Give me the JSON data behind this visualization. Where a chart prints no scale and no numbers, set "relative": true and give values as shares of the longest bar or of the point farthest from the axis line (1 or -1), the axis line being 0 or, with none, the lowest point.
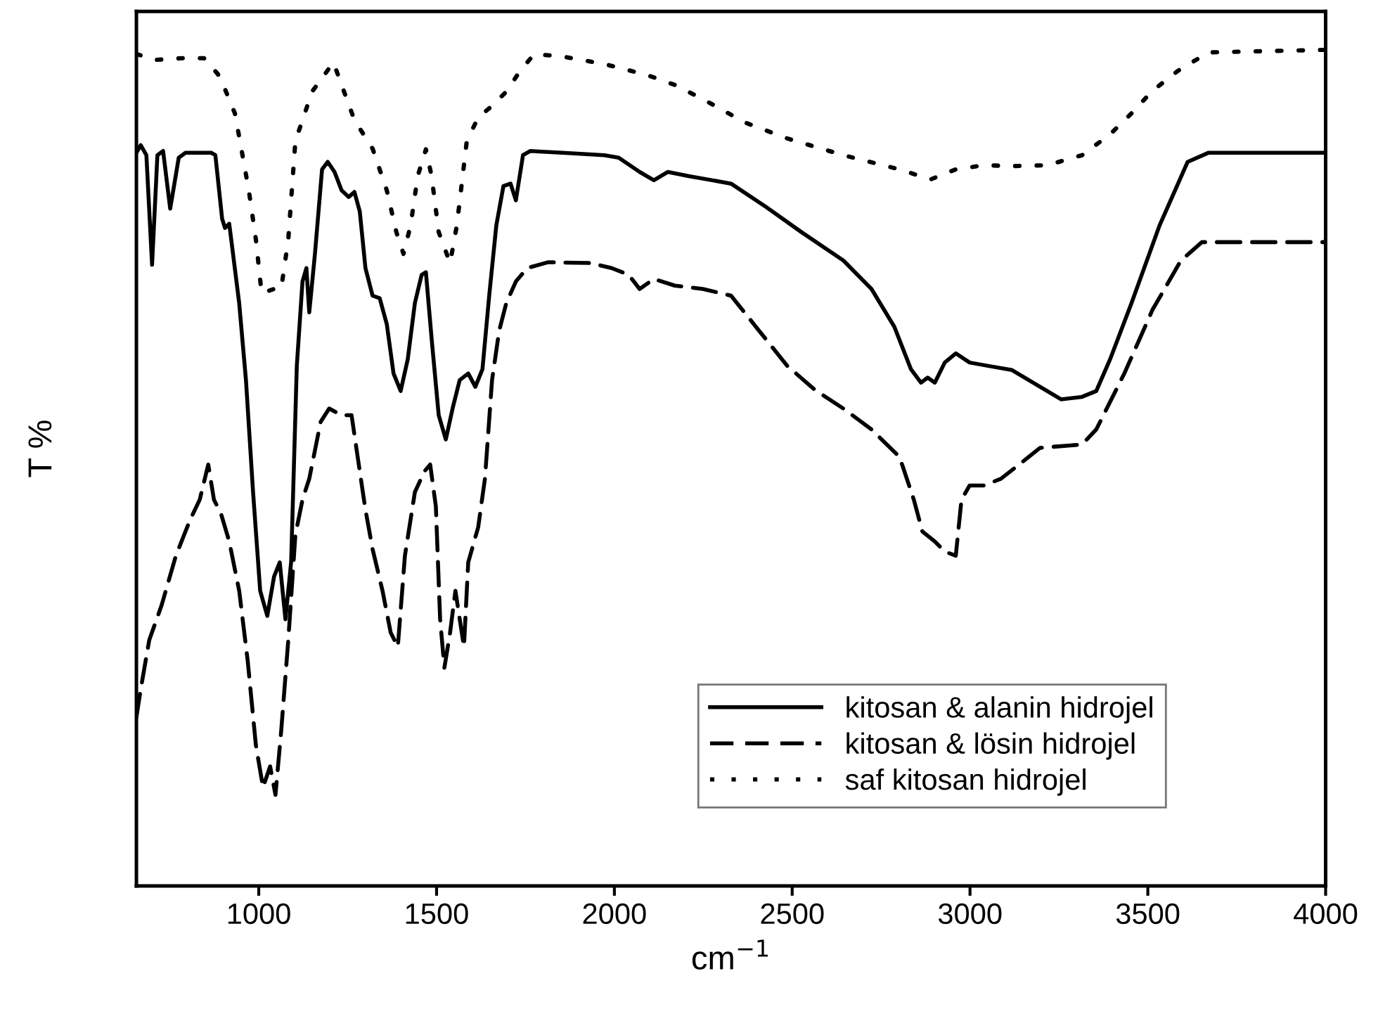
{
  "chart_data": {
    "type": "line",
    "relative": true,
    "xlabel": "cm$^{−1}$",
    "ylabel": "T %",
    "xlim": [
      656,
      4000
    ],
    "xticks": [
      1000,
      1500,
      2000,
      2500,
      3000,
      3500,
      4000
    ],
    "legend": "bottom right",
    "grid": false,
    "tick_labels": "x",
    "series": [
      {
        "name": "kitosan & alanin hidrojel",
        "color": "#000000",
        "line_style": "solid",
        "x": [
          656,
          668,
          684,
          700,
          715,
          731,
          751,
          775,
          794,
          826,
          866,
          878,
          897,
          905,
          917,
          925,
          945,
          964,
          984,
          1004,
          1024,
          1043,
          1059,
          1075,
          1091,
          1107,
          1123,
          1134,
          1142,
          1158,
          1178,
          1194,
          1213,
          1233,
          1253,
          1269,
          1284,
          1300,
          1320,
          1340,
          1360,
          1379,
          1399,
          1419,
          1439,
          1458,
          1470,
          1486,
          1506,
          1526,
          1545,
          1565,
          1589,
          1609,
          1629,
          1648,
          1668,
          1688,
          1708,
          1723,
          1743,
          1763,
          1854,
          1972,
          2012,
          2071,
          2111,
          2150,
          2209,
          2328,
          2427,
          2526,
          2644,
          2723,
          2787,
          2834,
          2862,
          2881,
          2901,
          2929,
          2960,
          2999,
          3051,
          3118,
          3197,
          3256,
          3315,
          3355,
          3394,
          3454,
          3533,
          3612,
          3671,
          3829,
          4000
        ],
        "values": [
          0.877,
          0.886,
          0.874,
          0.743,
          0.874,
          0.879,
          0.81,
          0.871,
          0.877,
          0.877,
          0.877,
          0.874,
          0.798,
          0.787,
          0.792,
          0.765,
          0.697,
          0.605,
          0.471,
          0.353,
          0.323,
          0.37,
          0.387,
          0.319,
          0.387,
          0.622,
          0.723,
          0.739,
          0.686,
          0.756,
          0.857,
          0.866,
          0.854,
          0.832,
          0.824,
          0.83,
          0.807,
          0.739,
          0.706,
          0.703,
          0.672,
          0.613,
          0.592,
          0.63,
          0.697,
          0.731,
          0.734,
          0.655,
          0.563,
          0.534,
          0.571,
          0.605,
          0.613,
          0.597,
          0.618,
          0.706,
          0.79,
          0.837,
          0.84,
          0.82,
          0.874,
          0.879,
          0.877,
          0.874,
          0.871,
          0.854,
          0.844,
          0.854,
          0.849,
          0.84,
          0.812,
          0.782,
          0.748,
          0.714,
          0.669,
          0.618,
          0.602,
          0.608,
          0.602,
          0.626,
          0.637,
          0.626,
          0.622,
          0.617,
          0.597,
          0.582,
          0.585,
          0.592,
          0.63,
          0.697,
          0.79,
          0.866,
          0.877,
          0.877,
          0.877
        ]
      },
      {
        "name": "kitosan & lösin hidrojel",
        "color": "#000000",
        "line_style": "dashed",
        "x": [
          656,
          668,
          692,
          727,
          767,
          806,
          834,
          858,
          874,
          894,
          917,
          945,
          969,
          992,
          1012,
          1032,
          1047,
          1063,
          1083,
          1103,
          1123,
          1142,
          1174,
          1198,
          1233,
          1261,
          1284,
          1300,
          1320,
          1348,
          1371,
          1391,
          1411,
          1439,
          1466,
          1482,
          1498,
          1510,
          1522,
          1538,
          1553,
          1577,
          1589,
          1617,
          1636,
          1656,
          1676,
          1696,
          1723,
          1755,
          1814,
          1933,
          1992,
          2040,
          2071,
          2111,
          2170,
          2249,
          2328,
          2407,
          2486,
          2565,
          2644,
          2723,
          2802,
          2842,
          2866,
          2901,
          2929,
          2960,
          2976,
          2999,
          3039,
          3087,
          3138,
          3197,
          3315,
          3355,
          3434,
          3513,
          3593,
          3652,
          3711,
          4000
        ],
        "values": [
          0.202,
          0.235,
          0.294,
          0.336,
          0.395,
          0.437,
          0.462,
          0.504,
          0.462,
          0.445,
          0.412,
          0.353,
          0.269,
          0.168,
          0.118,
          0.143,
          0.109,
          0.185,
          0.294,
          0.42,
          0.462,
          0.487,
          0.555,
          0.571,
          0.563,
          0.563,
          0.496,
          0.45,
          0.403,
          0.353,
          0.303,
          0.286,
          0.395,
          0.471,
          0.496,
          0.504,
          0.454,
          0.319,
          0.261,
          0.303,
          0.353,
          0.286,
          0.387,
          0.429,
          0.487,
          0.605,
          0.664,
          0.697,
          0.723,
          0.739,
          0.746,
          0.745,
          0.739,
          0.731,
          0.714,
          0.726,
          0.718,
          0.714,
          0.706,
          0.664,
          0.622,
          0.593,
          0.571,
          0.546,
          0.513,
          0.462,
          0.424,
          0.412,
          0.4,
          0.395,
          0.462,
          0.479,
          0.479,
          0.487,
          0.504,
          0.524,
          0.528,
          0.546,
          0.613,
          0.689,
          0.748,
          0.77,
          0.77,
          0.77
        ]
      },
      {
        "name": "saf kitosan hidrojel",
        "color": "#000000",
        "line_style": "dotted",
        "x": [
          656,
          707,
          786,
          846,
          885,
          905,
          933,
          953,
          972,
          992,
          1008,
          1043,
          1063,
          1083,
          1103,
          1123,
          1150,
          1210,
          1233,
          1269,
          1320,
          1360,
          1387,
          1407,
          1427,
          1447,
          1470,
          1486,
          1506,
          1538,
          1557,
          1585,
          1617,
          1656,
          1696,
          1735,
          1775,
          1854,
          1972,
          2091,
          2170,
          2249,
          2368,
          2486,
          2644,
          2802,
          2889,
          2960,
          3039,
          3118,
          3217,
          3315,
          3394,
          3454,
          3513,
          3585,
          3671,
          4000
        ],
        "values": [
          0.995,
          0.988,
          0.99,
          0.99,
          0.971,
          0.953,
          0.924,
          0.877,
          0.832,
          0.773,
          0.709,
          0.714,
          0.714,
          0.773,
          0.891,
          0.916,
          0.95,
          0.985,
          0.958,
          0.916,
          0.882,
          0.832,
          0.782,
          0.756,
          0.79,
          0.849,
          0.881,
          0.849,
          0.782,
          0.745,
          0.79,
          0.891,
          0.919,
          0.933,
          0.95,
          0.975,
          0.995,
          0.992,
          0.983,
          0.97,
          0.958,
          0.941,
          0.913,
          0.894,
          0.874,
          0.857,
          0.845,
          0.857,
          0.862,
          0.861,
          0.862,
          0.874,
          0.899,
          0.924,
          0.951,
          0.975,
          0.997,
          1.0
        ]
      }
    ]
  }
}
